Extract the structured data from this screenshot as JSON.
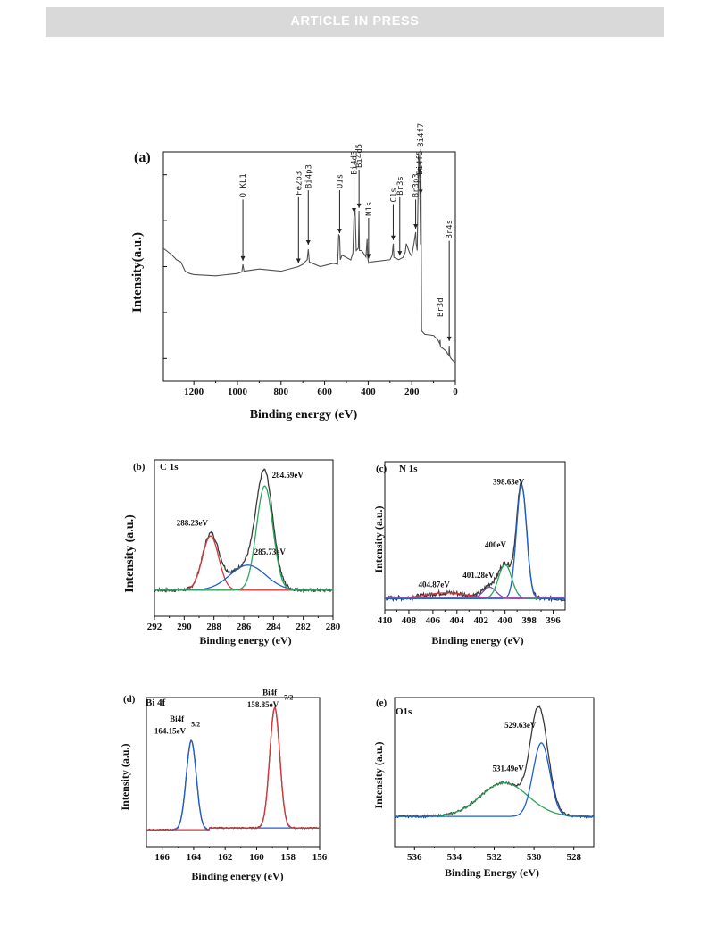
{
  "header": {
    "banner": "ARTICLE IN PRESS"
  },
  "colors": {
    "raw": "#505050",
    "red": "#d8373a",
    "green": "#2ba55a",
    "blue": "#1f5fd0",
    "purple": "#7a4fc0",
    "magenta": "#c050c0"
  },
  "chart_data": [
    {
      "type": "line",
      "panel_label": "(a)",
      "xlabel": "Binding energy (eV)",
      "ylabel": "Intensity(a.u.)",
      "xlim": [
        1340,
        0
      ],
      "ylim": [
        0,
        100
      ],
      "xticks": [
        1200,
        1000,
        800,
        600,
        400,
        200,
        0
      ],
      "series": [
        {
          "x": [
            1340,
            1300,
            1280,
            1260,
            1240,
            1220,
            1200,
            1100,
            1000,
            980,
            975,
            970,
            900,
            800,
            720,
            700,
            690,
            680,
            675,
            670,
            620,
            560,
            540,
            535,
            531,
            528,
            520,
            480,
            470,
            465,
            460,
            455,
            445,
            442,
            440,
            430,
            410,
            405,
            402,
            398,
            390,
            300,
            290,
            285,
            282,
            275,
            260,
            240,
            230,
            225,
            210,
            200,
            190,
            182,
            180,
            175,
            172,
            168,
            165,
            162,
            160,
            158,
            155,
            140,
            100,
            80,
            72,
            70,
            68,
            60,
            40,
            30,
            28,
            26,
            20,
            10,
            0
          ],
          "y": [
            58,
            55,
            53,
            52,
            48,
            47,
            47,
            46,
            47,
            48,
            51,
            48,
            49,
            48,
            50,
            51,
            52,
            53,
            58,
            52,
            50,
            51,
            51,
            64,
            63,
            53,
            55,
            53,
            56,
            72,
            75,
            57,
            58,
            74,
            57,
            57,
            54,
            62,
            54,
            52,
            52,
            53,
            55,
            60,
            54,
            54,
            53,
            54,
            56,
            60,
            56,
            55,
            60,
            65,
            60,
            57,
            75,
            99,
            95,
            77,
            60,
            100,
            22,
            21,
            20,
            18,
            16,
            18,
            15,
            14,
            13,
            11,
            16,
            11,
            10,
            9,
            8
          ]
        }
      ],
      "annotations": [
        {
          "text": "O KL1",
          "x": 975
        },
        {
          "text": "Fe2p3",
          "x": 720
        },
        {
          "text": "Bi4p3",
          "x": 675
        },
        {
          "text": "O1s",
          "x": 531
        },
        {
          "text": "Bi4d3",
          "x": 465
        },
        {
          "text": "Bi4d5",
          "x": 442
        },
        {
          "text": "N1s",
          "x": 398
        },
        {
          "text": "C1s",
          "x": 285
        },
        {
          "text": "Br3s",
          "x": 255
        },
        {
          "text": "Br3p3",
          "x": 182
        },
        {
          "text": "Bi4f5",
          "x": 164
        },
        {
          "text": "Bi4f7",
          "x": 159
        },
        {
          "text": "Br3d",
          "x": 70
        },
        {
          "text": "Br4s",
          "x": 28
        }
      ]
    },
    {
      "type": "line",
      "panel_label": "(b)",
      "element_label": "C 1s",
      "xlabel": "Binding energy (eV)",
      "ylabel": "Intensity (a.u.)",
      "xlim": [
        292,
        280
      ],
      "ylim": [
        -0.25,
        1.25
      ],
      "xticks": [
        292,
        290,
        288,
        286,
        284,
        282,
        280
      ],
      "baseline": 0,
      "fits": [
        {
          "center": 288.23,
          "height": 0.52,
          "width": 0.55,
          "color": "red",
          "label": "288.23eV"
        },
        {
          "center": 285.73,
          "height": 0.24,
          "width": 1.2,
          "color": "blue",
          "label": "285.73eV"
        },
        {
          "center": 284.59,
          "height": 1.0,
          "width": 0.55,
          "color": "green",
          "label": "284.59eV"
        }
      ],
      "noise": 0.015
    },
    {
      "type": "line",
      "panel_label": "(c)",
      "element_label": "N 1s",
      "xlabel": "Binding energy (eV)",
      "ylabel": "Intensity (a.u.)",
      "xlim": [
        410,
        395
      ],
      "ylim": [
        -0.1,
        1.2
      ],
      "xticks": [
        410,
        408,
        406,
        404,
        402,
        400,
        398,
        396
      ],
      "baseline": 0,
      "fits": [
        {
          "center": 404.87,
          "height": 0.05,
          "width": 1.8,
          "color": "red",
          "label": "404.87eV"
        },
        {
          "center": 401.28,
          "height": 0.1,
          "width": 0.55,
          "color": "purple",
          "label": "401.28eV"
        },
        {
          "center": 400.0,
          "height": 0.3,
          "width": 0.55,
          "color": "green",
          "label": "400eV"
        },
        {
          "center": 398.63,
          "height": 1.0,
          "width": 0.42,
          "color": "blue",
          "label": "398.63eV"
        }
      ],
      "noise": 0.02
    },
    {
      "type": "line",
      "panel_label": "(d)",
      "element_label": "Bi 4f",
      "xlabel": "Binding energy (eV)",
      "ylabel": "Intensity (a.u.)",
      "xlim": [
        167,
        156
      ],
      "ylim": [
        -0.12,
        1.12
      ],
      "xticks": [
        166,
        164,
        162,
        160,
        158,
        156
      ],
      "baseline": 0.02,
      "fits": [
        {
          "center": 164.15,
          "height": 0.74,
          "width": 0.32,
          "color": "blue",
          "label": "164.15eV",
          "label_top": "Bi4f",
          "label_sub": "5/2"
        },
        {
          "center": 158.85,
          "height": 1.0,
          "width": 0.32,
          "color": "red",
          "label": "158.85eV",
          "label_top": "Bi4f",
          "label_sub": "7/2"
        }
      ],
      "noise": 0.005
    },
    {
      "type": "line",
      "panel_label": "(e)",
      "element_label": "O1s",
      "xlabel": "Binding Energy (eV)",
      "ylabel": "Intensity (a.u.)",
      "xlim": [
        537,
        527
      ],
      "ylim": [
        -0.28,
        1.1
      ],
      "xticks": [
        536,
        534,
        532,
        530,
        528
      ],
      "baseline": 0,
      "fits": [
        {
          "center": 531.49,
          "height": 0.31,
          "width": 1.2,
          "color": "green",
          "label": "531.49eV"
        },
        {
          "center": 529.63,
          "height": 0.68,
          "width": 0.42,
          "color": "blue",
          "label": "529.63eV"
        }
      ],
      "noise": 0.01
    }
  ]
}
